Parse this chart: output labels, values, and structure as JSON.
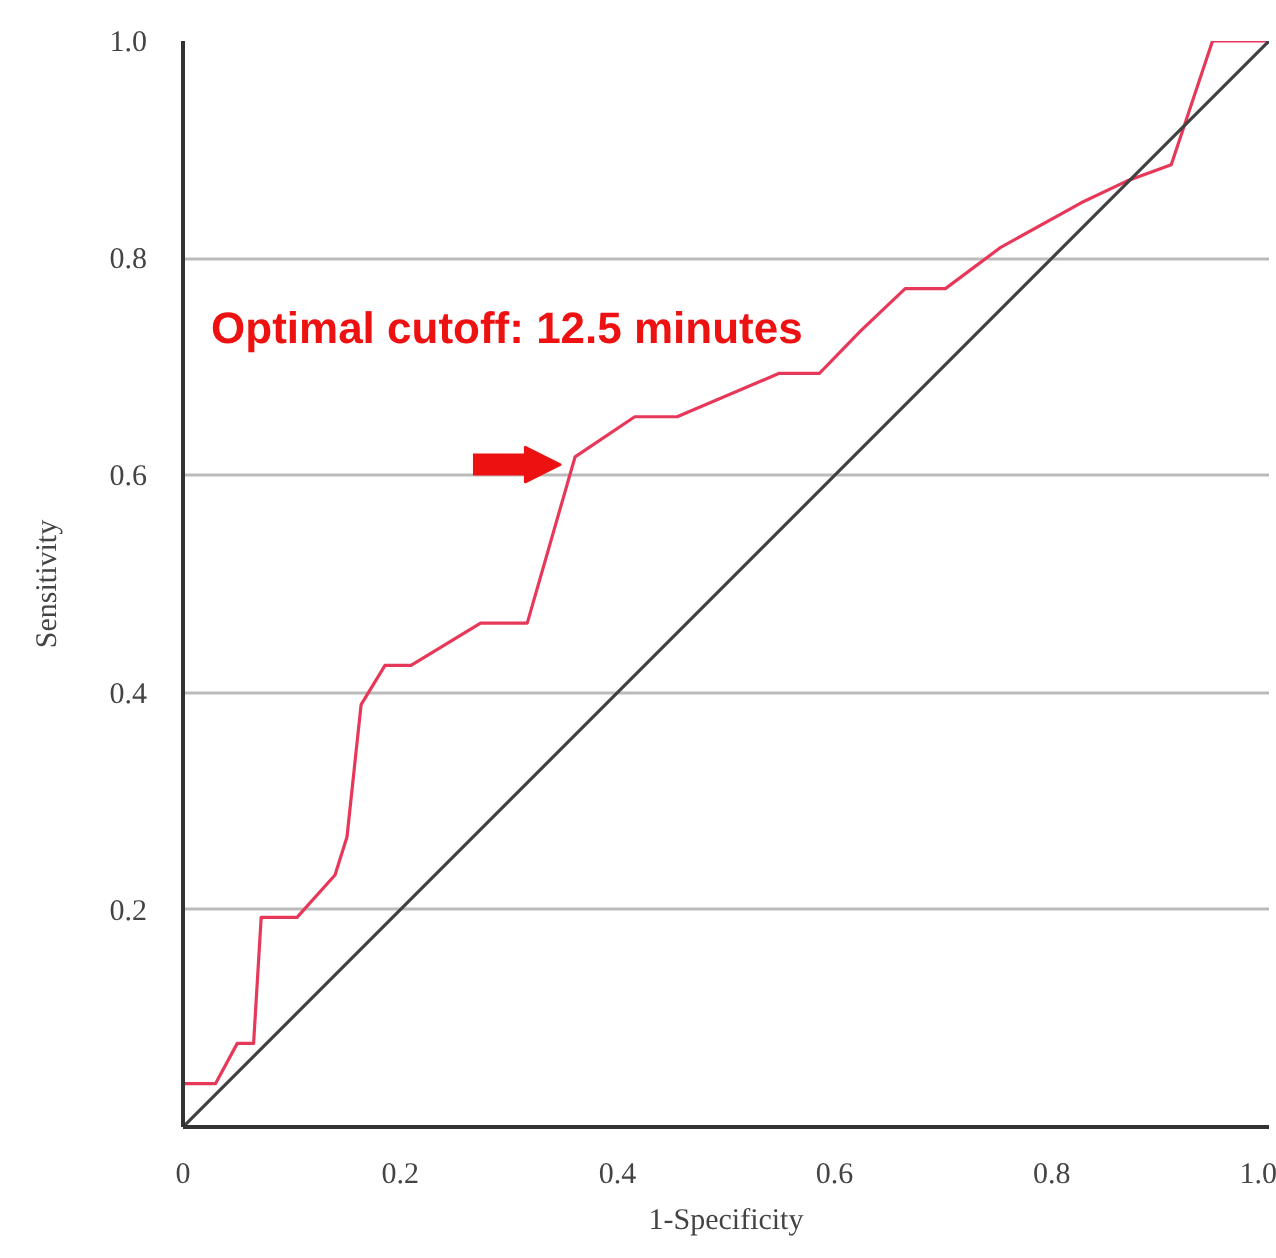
{
  "chart_data": {
    "type": "line",
    "xlabel": "1-Specificity",
    "ylabel": "Sensitivity",
    "xlim": [
      0,
      1
    ],
    "ylim": [
      0,
      1
    ],
    "xticks": [
      0,
      0.2,
      0.4,
      0.6,
      0.8,
      {
        "value": 1,
        "label": "1.0"
      }
    ],
    "yticks": [
      0.2,
      0.4,
      0.6,
      0.8,
      {
        "value": 1,
        "label": "1.0"
      }
    ],
    "grid": "y",
    "marker": "none",
    "line_style": "solid",
    "series": [
      {
        "color": "#e8385a",
        "x": [
          0,
          0,
          0.03,
          0.05,
          0.065,
          0.072,
          0.105,
          0.14,
          0.151,
          0.164,
          0.186,
          0.21,
          0.274,
          0.317,
          0.361,
          0.416,
          0.455,
          0.549,
          0.586,
          0.624,
          0.665,
          0.702,
          0.753,
          0.827,
          0.869,
          0.91,
          0.948,
          1
        ],
        "values": [
          0,
          0.04,
          0.04,
          0.077,
          0.077,
          0.193,
          0.193,
          0.232,
          0.267,
          0.389,
          0.425,
          0.425,
          0.464,
          0.464,
          0.617,
          0.654,
          0.654,
          0.694,
          0.694,
          0.733,
          0.772,
          0.772,
          0.81,
          0.851,
          0.871,
          0.886,
          1,
          1
        ]
      },
      {
        "color": "#404040",
        "x": [
          0,
          1
        ],
        "values": [
          0,
          1
        ]
      }
    ],
    "annotations": [
      {
        "text": "Optimal cutoff: 12.5 minutes",
        "x": 0.361,
        "y": 0.617
      }
    ]
  }
}
